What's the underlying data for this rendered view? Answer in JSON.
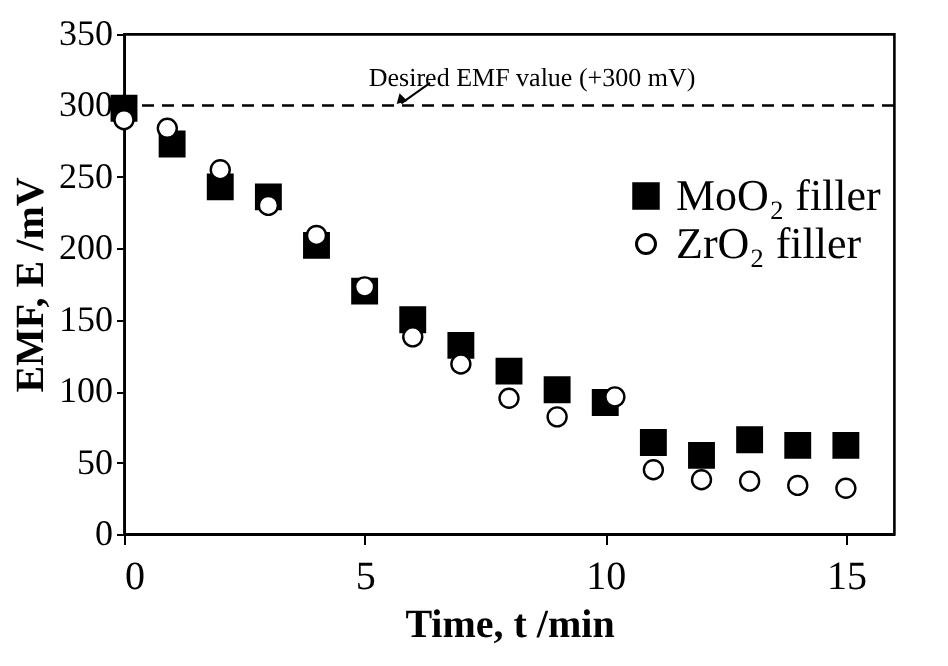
{
  "chart_data": {
    "type": "scatter",
    "xlabel": "Time, t /min",
    "ylabel": "EMF, E /mV",
    "series": [
      {
        "name": "MoO₂ filler",
        "color": "#000000",
        "marker": "square",
        "x": [
          0,
          1,
          2,
          3,
          4,
          5,
          6,
          7,
          8,
          9,
          10,
          11,
          12,
          13,
          14,
          15
        ],
        "values": [
          298,
          273,
          243,
          236,
          202,
          170,
          150,
          132,
          114,
          101,
          92,
          64,
          55,
          66,
          62,
          62
        ]
      },
      {
        "name": "ZrO₂ filler",
        "color": "#000000",
        "marker": "circle",
        "x": [
          0,
          0.9,
          2,
          3,
          4,
          5,
          6,
          7,
          8,
          9,
          10.2,
          11,
          12,
          13,
          14,
          15
        ],
        "values": [
          290,
          284,
          255,
          230,
          209,
          173,
          138,
          119,
          95,
          82,
          96,
          45,
          38,
          37,
          34,
          32
        ]
      }
    ],
    "xlim": [
      0,
      16
    ],
    "xticks": [
      0,
      5,
      10,
      15
    ],
    "ylim": [
      0,
      350
    ],
    "yticks": [
      0,
      50,
      100,
      150,
      200,
      250,
      300,
      350
    ],
    "ref_lines": [
      {
        "axis": "y",
        "value": 300,
        "label": "Desired EMF value (+300 mV)",
        "color": "#000000",
        "line_style": "dashed"
      }
    ],
    "legend": "right",
    "grid": false
  }
}
